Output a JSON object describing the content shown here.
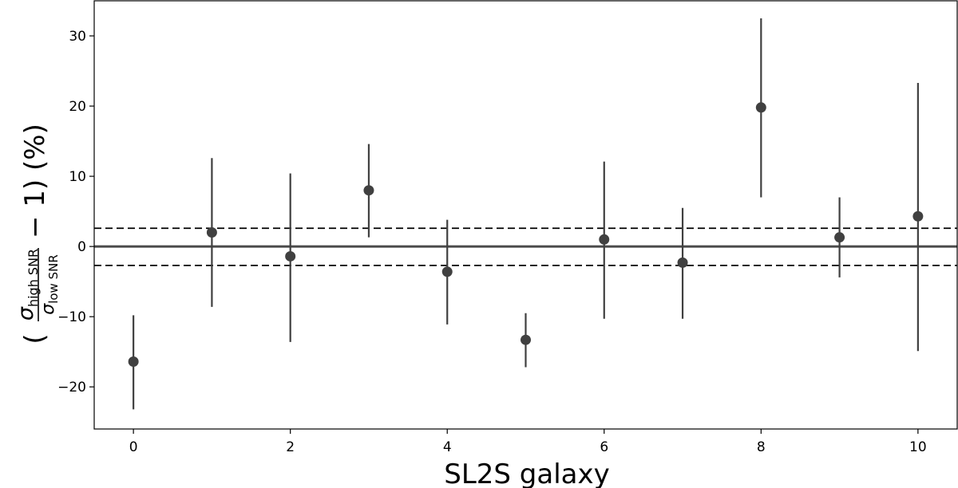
{
  "chart_data": {
    "type": "scatter",
    "title": "",
    "xlabel": "SL2S galaxy",
    "ylabel": {
      "prefix": "(",
      "numerator_symbol": "σ",
      "numerator_subscript": "high SNR",
      "denominator_symbol": "σ",
      "denominator_subscript": "low SNR",
      "suffix": "− 1) (%)"
    },
    "xlim": [
      -0.5,
      10.5
    ],
    "ylim": [
      -26,
      35
    ],
    "xticks": [
      0,
      2,
      4,
      6,
      8,
      10
    ],
    "yticks": [
      -20,
      -10,
      0,
      10,
      20,
      30
    ],
    "grid": false,
    "legend": "none",
    "points": [
      {
        "x": 0,
        "y": -16.4,
        "y_low": -23.2,
        "y_high": -9.8
      },
      {
        "x": 1,
        "y": 2.0,
        "y_low": -8.6,
        "y_high": 12.6
      },
      {
        "x": 2,
        "y": -1.4,
        "y_low": -13.6,
        "y_high": 10.4
      },
      {
        "x": 3,
        "y": 8.0,
        "y_low": 1.3,
        "y_high": 14.6
      },
      {
        "x": 4,
        "y": -3.6,
        "y_low": -11.1,
        "y_high": 3.8
      },
      {
        "x": 5,
        "y": -13.3,
        "y_low": -17.2,
        "y_high": -9.5
      },
      {
        "x": 6,
        "y": 1.0,
        "y_low": -10.3,
        "y_high": 12.1
      },
      {
        "x": 7,
        "y": -2.3,
        "y_low": -10.3,
        "y_high": 5.5
      },
      {
        "x": 8,
        "y": 19.8,
        "y_low": 7.0,
        "y_high": 32.5
      },
      {
        "x": 9,
        "y": 1.3,
        "y_low": -4.4,
        "y_high": 7.0
      },
      {
        "x": 10,
        "y": 4.3,
        "y_low": -14.9,
        "y_high": 23.3
      }
    ],
    "reference_lines": [
      {
        "y": 0,
        "style": "solid"
      },
      {
        "y": 2.6,
        "style": "dashed"
      },
      {
        "y": -2.7,
        "style": "dashed"
      }
    ],
    "colors": {
      "marker": "#404040",
      "errorbar": "#404040",
      "zero_line": "#4a4a4a",
      "dashed_line": "#000000",
      "axes": "#000000"
    }
  }
}
